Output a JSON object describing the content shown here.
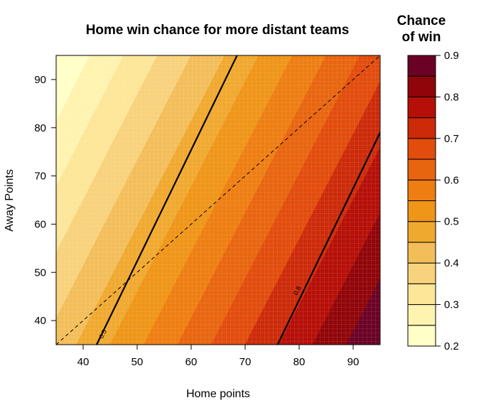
{
  "chart_data": {
    "type": "heatmap",
    "title": "Home win chance for more distant teams",
    "xlabel": "Home points",
    "ylabel": "Away Points",
    "xlim": [
      35,
      95
    ],
    "ylim": [
      35,
      95
    ],
    "x_ticks": [
      40,
      50,
      60,
      70,
      80,
      90
    ],
    "y_ticks": [
      40,
      50,
      60,
      70,
      80,
      90
    ],
    "grid": false,
    "legend": {
      "title_lines": [
        "Chance",
        "of win"
      ],
      "placement": "right",
      "ticks": [
        0.2,
        0.3,
        0.4,
        0.5,
        0.6,
        0.7,
        0.8,
        0.9
      ],
      "levels": [
        0.2,
        0.25,
        0.3,
        0.35,
        0.4,
        0.45,
        0.5,
        0.55,
        0.6,
        0.65,
        0.7,
        0.75,
        0.8,
        0.85,
        0.9
      ],
      "colors": [
        "#ffffc8",
        "#fff3b0",
        "#fde698",
        "#f8d27c",
        "#f3be5a",
        "#f0a92f",
        "#ef9518",
        "#ee7e12",
        "#e8650f",
        "#e24c0c",
        "#cc2a09",
        "#b50f07",
        "#900509",
        "#6b0225"
      ]
    },
    "surface": {
      "description": "Home win probability p(home, away); contour bands are parallel lines of constant home - 0.55*away",
      "reference_points": [
        {
          "home": 35,
          "away": 95,
          "p": 0.2
        },
        {
          "home": 95,
          "away": 35,
          "p": 0.9
        },
        {
          "home": 35,
          "away": 35,
          "p": 0.42
        },
        {
          "home": 95,
          "away": 95,
          "p": 0.68
        }
      ]
    },
    "contour_lines": [
      {
        "level": 0.5,
        "style": "solid",
        "points": [
          [
            42.5,
            35
          ],
          [
            68.5,
            95
          ]
        ]
      },
      {
        "level": 0.8,
        "style": "solid",
        "points": [
          [
            76,
            35
          ],
          [
            95,
            79
          ]
        ]
      }
    ],
    "reference_line": {
      "style": "dashed",
      "points": [
        [
          35,
          35
        ],
        [
          95,
          95
        ]
      ]
    },
    "contour_labels": [
      {
        "text": "0.5",
        "x": 44,
        "y": 37
      },
      {
        "text": "0.8",
        "x": 80,
        "y": 46
      }
    ]
  }
}
